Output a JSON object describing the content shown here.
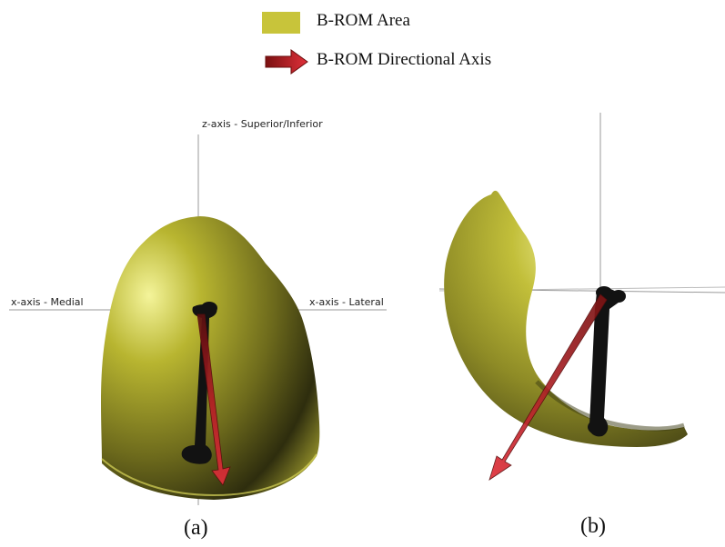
{
  "legend": {
    "area_label": "B-ROM Area",
    "axis_label": "B-ROM Directional Axis",
    "area_color": "#c8c43a",
    "arrow_color": "#c0202a"
  },
  "panel_a": {
    "z_axis_label": "z-axis - Superior/Inferior",
    "x_axis_left_label": "x-axis - Medial",
    "x_axis_right_label": "x-axis - Lateral",
    "caption": "(a)"
  },
  "panel_b": {
    "caption": "(b)"
  },
  "colors": {
    "surface_light": "#eaea7a",
    "surface_dark": "#2a2a10",
    "bone": "#111111"
  }
}
